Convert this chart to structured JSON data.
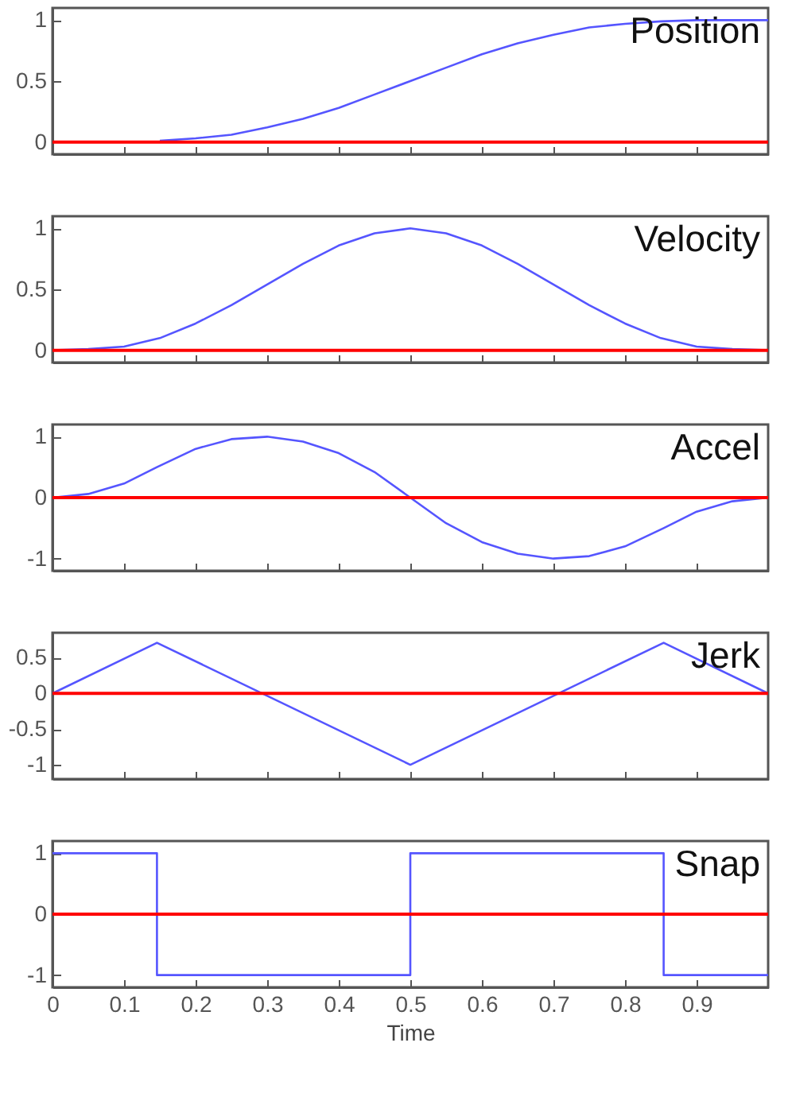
{
  "chart_data": [
    {
      "type": "line",
      "title": "Position",
      "x": [
        0.15,
        0.2,
        0.25,
        0.3,
        0.35,
        0.4,
        0.45,
        0.5,
        0.55,
        0.6,
        0.65,
        0.7,
        0.75,
        0.8,
        0.85,
        0.9,
        0.95,
        1
      ],
      "series": [
        {
          "color": "#5555ff",
          "values": [
            0.01,
            0.03,
            0.06,
            0.12,
            0.19,
            0.28,
            0.39,
            0.5,
            0.61,
            0.72,
            0.81,
            0.88,
            0.94,
            0.97,
            0.99,
            1,
            1,
            1
          ]
        }
      ],
      "xlim": [
        0,
        1
      ],
      "xticks": [
        0,
        0.1,
        0.2,
        0.3,
        0.4,
        0.5,
        0.6,
        0.7,
        0.8,
        0.9
      ],
      "ylim": [
        -0.1,
        1.1
      ],
      "yticks": [
        0,
        0.5,
        1
      ],
      "ref_lines": [
        {
          "axis": "y",
          "value": 0,
          "color": "#ff0000"
        }
      ],
      "tick_labels": "y"
    },
    {
      "type": "line",
      "title": "Velocity",
      "x": [
        0,
        0.05,
        0.1,
        0.15,
        0.2,
        0.25,
        0.3,
        0.35,
        0.4,
        0.45,
        0.5,
        0.55,
        0.6,
        0.65,
        0.7,
        0.75,
        0.8,
        0.85,
        0.9,
        0.95,
        1
      ],
      "series": [
        {
          "color": "#5555ff",
          "values": [
            0,
            0.01,
            0.03,
            0.1,
            0.22,
            0.37,
            0.54,
            0.71,
            0.86,
            0.96,
            1,
            0.96,
            0.86,
            0.71,
            0.54,
            0.37,
            0.22,
            0.1,
            0.03,
            0.01,
            0
          ]
        }
      ],
      "xlim": [
        0,
        1
      ],
      "xticks": [
        0,
        0.1,
        0.2,
        0.3,
        0.4,
        0.5,
        0.6,
        0.7,
        0.8,
        0.9
      ],
      "ylim": [
        -0.1,
        1.1
      ],
      "yticks": [
        0,
        0.5,
        1
      ],
      "ref_lines": [
        {
          "axis": "y",
          "value": 0,
          "color": "#ff0000"
        }
      ],
      "tick_labels": "y"
    },
    {
      "type": "line",
      "title": "Accel",
      "x": [
        0,
        0.05,
        0.1,
        0.146,
        0.2,
        0.25,
        0.3,
        0.35,
        0.4,
        0.45,
        0.5,
        0.55,
        0.6,
        0.65,
        0.7,
        0.75,
        0.8,
        0.854,
        0.9,
        0.95,
        1
      ],
      "series": [
        {
          "color": "#5555ff",
          "values": [
            0,
            0.06,
            0.23,
            0.5,
            0.8,
            0.96,
            1,
            0.92,
            0.73,
            0.42,
            0,
            -0.42,
            -0.73,
            -0.92,
            -1,
            -0.96,
            -0.8,
            -0.5,
            -0.23,
            -0.06,
            0
          ]
        }
      ],
      "xlim": [
        0,
        1
      ],
      "xticks": [
        0,
        0.1,
        0.2,
        0.3,
        0.4,
        0.5,
        0.6,
        0.7,
        0.8,
        0.9
      ],
      "ylim": [
        -1.2,
        1.2
      ],
      "yticks": [
        -1,
        0,
        1
      ],
      "ref_lines": [
        {
          "axis": "y",
          "value": 0,
          "color": "#ff0000"
        }
      ],
      "tick_labels": "y"
    },
    {
      "type": "line",
      "title": "Jerk",
      "x": [
        0,
        0.146,
        0.5,
        0.854,
        1
      ],
      "series": [
        {
          "color": "#5555ff",
          "values": [
            0,
            0.71,
            -1,
            0.71,
            0
          ]
        }
      ],
      "xlim": [
        0,
        1
      ],
      "xticks": [
        0,
        0.1,
        0.2,
        0.3,
        0.4,
        0.5,
        0.6,
        0.7,
        0.8,
        0.9
      ],
      "ylim": [
        -1.2,
        0.85
      ],
      "yticks": [
        -1,
        -0.5,
        0,
        0.5
      ],
      "ref_lines": [
        {
          "axis": "y",
          "value": 0,
          "color": "#ff0000"
        }
      ],
      "tick_labels": "y"
    },
    {
      "type": "step",
      "title": "Snap",
      "xlabel": "Time",
      "x": [
        0,
        0.146,
        0.5,
        0.854,
        1
      ],
      "series": [
        {
          "color": "#5555ff",
          "values": [
            1,
            -1,
            1,
            -1,
            -1
          ]
        }
      ],
      "xlim": [
        0,
        1
      ],
      "xticks": [
        0,
        0.1,
        0.2,
        0.3,
        0.4,
        0.5,
        0.6,
        0.7,
        0.8,
        0.9
      ],
      "ylim": [
        -1.2,
        1.2
      ],
      "yticks": [
        -1,
        0,
        1
      ],
      "ref_lines": [
        {
          "axis": "y",
          "value": 0,
          "color": "#ff0000"
        }
      ]
    }
  ]
}
